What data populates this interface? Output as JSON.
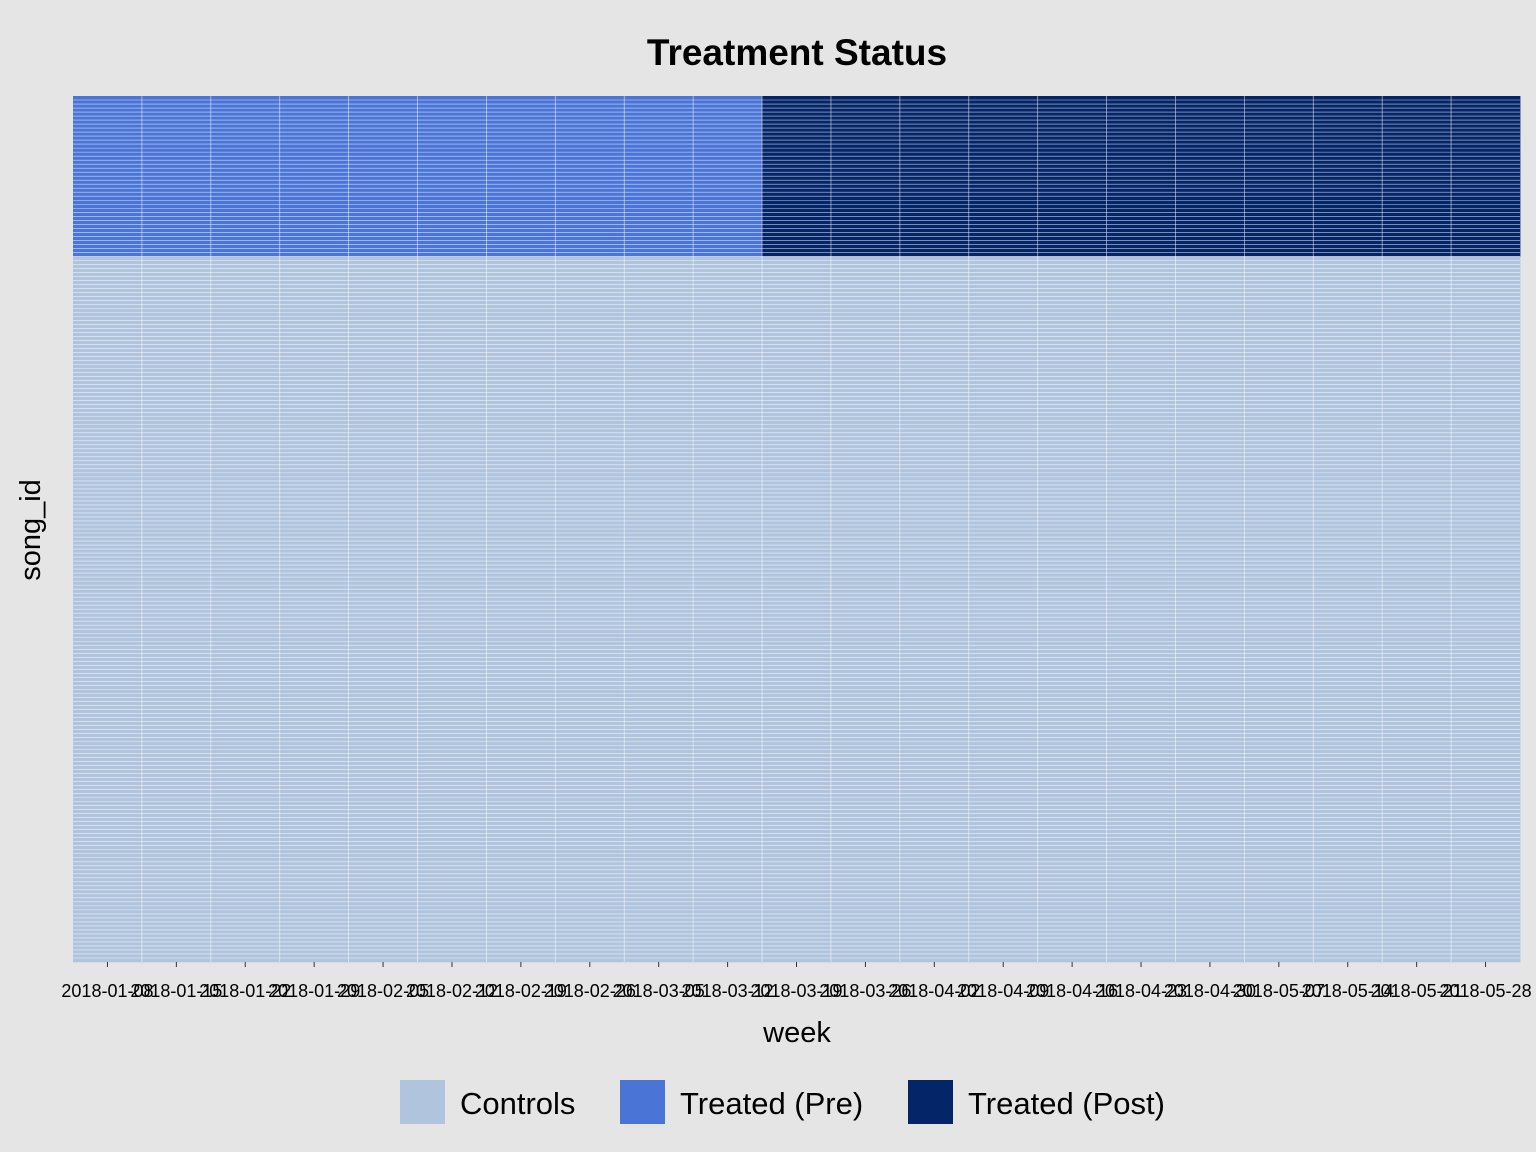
{
  "chart_data": {
    "type": "heatmap",
    "title": "Treatment Status",
    "xlabel": "week",
    "ylabel": "song_id",
    "x": [
      "2018-01-08",
      "2018-01-15",
      "2018-01-22",
      "2018-01-29",
      "2018-02-05",
      "2018-02-12",
      "2018-02-19",
      "2018-02-26",
      "2018-03-05",
      "2018-03-12",
      "2018-03-19",
      "2018-03-26",
      "2018-04-02",
      "2018-04-09",
      "2018-04-16",
      "2018-04-23",
      "2018-04-30",
      "2018-05-07",
      "2018-05-14",
      "2018-05-21",
      "2018-05-28"
    ],
    "tick_labels": [
      "2018-01-08",
      "2018-01-15",
      "2018-01-22",
      "2018-01-29",
      "2018-02-05",
      "2018-02-12",
      "2018-02-19",
      "2018-02-26",
      "2018-03-05",
      "2018-03-12",
      "2018-03-19",
      "2018-03-26",
      "2018-04-02",
      "2018-04-09",
      "2018-04-16",
      "2018-04-23",
      "2018-04-30",
      "2018-05-07",
      "2018-05-14",
      "2018-05-21",
      "2018-05-28"
    ],
    "n_treated_units": 40,
    "n_control_units": 176,
    "treatment_start_week": "2018-03-19",
    "y_tick_labels_shown": false,
    "legend": {
      "placement": "bottom",
      "entries": [
        {
          "label": "Controls",
          "color": "#b0c4de"
        },
        {
          "label": "Treated (Pre)",
          "color": "#4a74d6"
        },
        {
          "label": "Treated (Post)",
          "color": "#042669"
        }
      ]
    },
    "grid_color": "#ffffff",
    "background_color": "#e5e5e5"
  }
}
